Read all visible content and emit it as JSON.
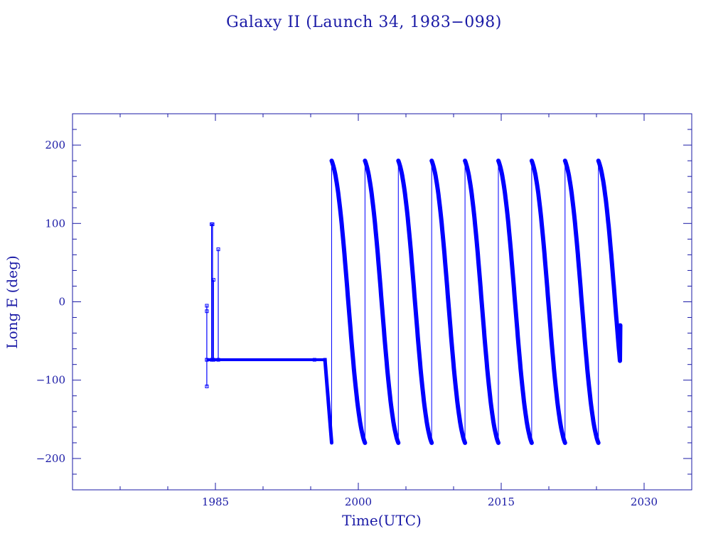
{
  "chart_data": {
    "type": "scatter",
    "title": "Galaxy II (Launch 34, 1983−098)",
    "xlabel": "Time(UTC)",
    "ylabel": "Long E (deg)",
    "xlim": [
      1970,
      2035
    ],
    "ylim": [
      -240,
      240
    ],
    "x_ticks": [
      1985,
      2000,
      2015,
      2030
    ],
    "x_tick_labels": [
      "1985",
      "2000",
      "2015",
      "2030"
    ],
    "y_ticks": [
      200,
      100,
      0,
      -100,
      -200
    ],
    "y_tick_labels": [
      "200",
      "100",
      "0",
      "−100",
      "−200"
    ],
    "x_minor_step": 5,
    "y_minor_step": 20,
    "grid": false,
    "color": "#0000ff",
    "series": [
      {
        "segment": "station-kept",
        "points": [
          [
            1984.1,
            -74
          ],
          [
            1984.1,
            -108
          ],
          [
            1984.1,
            -74
          ],
          [
            1984.1,
            -5
          ],
          [
            1984.1,
            -12
          ],
          [
            1984.1,
            -74
          ],
          [
            1984.6,
            -74
          ],
          [
            1984.6,
            99
          ],
          [
            1984.7,
            99
          ],
          [
            1984.7,
            -74
          ],
          [
            1984.8,
            -74
          ],
          [
            1984.8,
            28
          ],
          [
            1984.8,
            -74
          ],
          [
            1985.3,
            -74
          ],
          [
            1985.3,
            67
          ],
          [
            1985.3,
            -74
          ],
          [
            1995.4,
            -74
          ],
          [
            1996.5,
            -74
          ]
        ]
      },
      {
        "segment": "drift-1",
        "points": [
          [
            1996.5,
            -74
          ],
          [
            1997.2,
            -180
          ]
        ]
      }
    ],
    "drift_cycles": [
      {
        "start": 1997.2,
        "end": 2000.7,
        "start_lon": 180,
        "end_lon": -180
      },
      {
        "start": 2000.7,
        "end": 2004.2,
        "start_lon": 180,
        "end_lon": -180
      },
      {
        "start": 2004.2,
        "end": 2007.7,
        "start_lon": 180,
        "end_lon": -180
      },
      {
        "start": 2007.7,
        "end": 2011.2,
        "start_lon": 180,
        "end_lon": -180
      },
      {
        "start": 2011.2,
        "end": 2014.7,
        "start_lon": 180,
        "end_lon": -180
      },
      {
        "start": 2014.7,
        "end": 2018.2,
        "start_lon": 180,
        "end_lon": -180
      },
      {
        "start": 2018.2,
        "end": 2021.7,
        "start_lon": 180,
        "end_lon": -180
      },
      {
        "start": 2021.7,
        "end": 2025.2,
        "start_lon": 180,
        "end_lon": -180
      },
      {
        "start": 2025.2,
        "end": 2027.5,
        "start_lon": 180,
        "end_lon": -30
      }
    ]
  }
}
